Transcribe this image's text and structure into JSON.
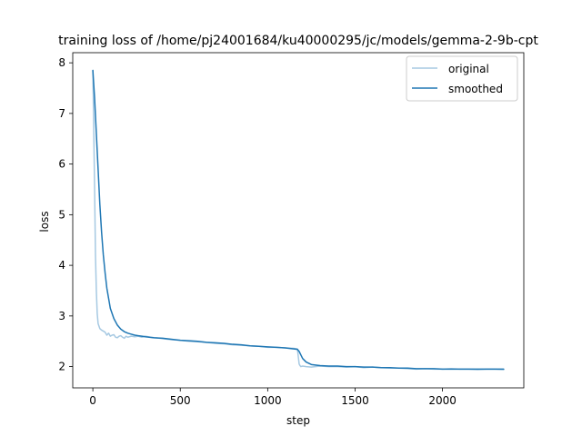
{
  "chart_data": {
    "type": "line",
    "title": "training loss of /home/pj24001684/ku40000295/jc/models/gemma-2-9b-cpt",
    "xlabel": "step",
    "ylabel": "loss",
    "xlim": [
      -115,
      2465
    ],
    "ylim": [
      1.58,
      8.2
    ],
    "xticks": [
      0,
      500,
      1000,
      1500,
      2000
    ],
    "yticks": [
      2,
      3,
      4,
      5,
      6,
      7,
      8
    ],
    "grid": false,
    "legend_position": "top-right",
    "series": [
      {
        "name": "original",
        "color": "#a6c9e2",
        "x": [
          0,
          5,
          10,
          15,
          20,
          25,
          30,
          40,
          50,
          60,
          70,
          80,
          90,
          100,
          110,
          120,
          130,
          140,
          150,
          160,
          170,
          180,
          190,
          200,
          220,
          240,
          260,
          280,
          300,
          330,
          360,
          400,
          450,
          500,
          550,
          600,
          650,
          700,
          750,
          800,
          850,
          900,
          950,
          1000,
          1050,
          1100,
          1150,
          1170,
          1175,
          1180,
          1185,
          1190,
          1200,
          1220,
          1250,
          1300,
          1350,
          1400,
          1450,
          1500,
          1550,
          1600,
          1650,
          1700,
          1750,
          1800,
          1850,
          1900,
          1950,
          2000,
          2050,
          2100,
          2150,
          2200,
          2250,
          2300,
          2350
        ],
        "y": [
          7.85,
          6.7,
          5.5,
          4.2,
          3.5,
          3.05,
          2.85,
          2.75,
          2.72,
          2.7,
          2.68,
          2.62,
          2.66,
          2.6,
          2.62,
          2.63,
          2.58,
          2.57,
          2.6,
          2.61,
          2.58,
          2.56,
          2.6,
          2.58,
          2.6,
          2.59,
          2.6,
          2.58,
          2.6,
          2.58,
          2.57,
          2.55,
          2.53,
          2.52,
          2.5,
          2.49,
          2.48,
          2.46,
          2.45,
          2.43,
          2.42,
          2.41,
          2.4,
          2.38,
          2.38,
          2.37,
          2.36,
          2.35,
          2.2,
          2.05,
          2.02,
          2.0,
          2.01,
          2.0,
          1.99,
          2.01,
          2.0,
          2.0,
          1.99,
          2.0,
          1.98,
          1.99,
          1.98,
          1.97,
          1.97,
          1.96,
          1.95,
          1.96,
          1.95,
          1.95,
          1.96,
          1.95,
          1.95,
          1.94,
          1.95,
          1.95,
          1.94
        ]
      },
      {
        "name": "smoothed",
        "color": "#1f77b4",
        "x": [
          0,
          10,
          20,
          30,
          40,
          50,
          60,
          70,
          80,
          90,
          100,
          120,
          140,
          160,
          180,
          200,
          220,
          240,
          260,
          280,
          300,
          350,
          400,
          450,
          500,
          550,
          600,
          650,
          700,
          750,
          800,
          850,
          900,
          950,
          1000,
          1050,
          1100,
          1150,
          1170,
          1180,
          1190,
          1200,
          1220,
          1250,
          1300,
          1350,
          1400,
          1450,
          1500,
          1550,
          1600,
          1650,
          1700,
          1750,
          1800,
          1850,
          1900,
          1950,
          2000,
          2050,
          2100,
          2150,
          2200,
          2250,
          2300,
          2350
        ],
        "y": [
          7.85,
          7.3,
          6.6,
          5.9,
          5.2,
          4.65,
          4.2,
          3.85,
          3.55,
          3.35,
          3.15,
          2.95,
          2.82,
          2.74,
          2.69,
          2.66,
          2.64,
          2.62,
          2.61,
          2.6,
          2.59,
          2.57,
          2.56,
          2.54,
          2.52,
          2.51,
          2.5,
          2.48,
          2.47,
          2.46,
          2.44,
          2.43,
          2.41,
          2.4,
          2.39,
          2.38,
          2.37,
          2.35,
          2.34,
          2.3,
          2.23,
          2.16,
          2.09,
          2.04,
          2.02,
          2.01,
          2.01,
          2.0,
          2.0,
          1.99,
          1.99,
          1.98,
          1.98,
          1.97,
          1.97,
          1.96,
          1.96,
          1.96,
          1.95,
          1.95,
          1.95,
          1.95,
          1.95,
          1.95,
          1.95,
          1.95
        ]
      }
    ]
  }
}
